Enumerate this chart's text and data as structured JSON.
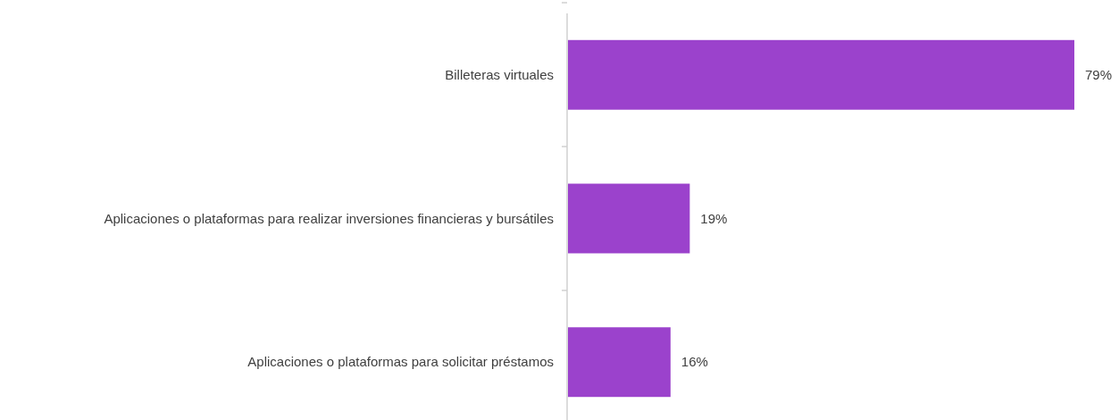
{
  "chart_data": {
    "type": "bar",
    "orientation": "horizontal",
    "categories": [
      "Billeteras virtuales",
      "Aplicaciones o plataformas para realizar inversiones financieras y bursátiles",
      "Aplicaciones o plataformas para solicitar préstamos"
    ],
    "values": [
      79,
      19,
      16
    ],
    "value_labels": [
      "79%",
      "19%",
      "16%"
    ],
    "color": "#9b42cc"
  }
}
